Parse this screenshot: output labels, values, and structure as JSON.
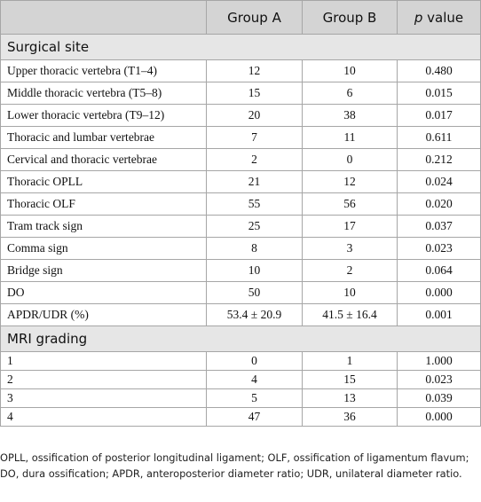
{
  "table": {
    "columns": [
      "Group A",
      "Group B",
      "p value"
    ],
    "sections": [
      {
        "title": "Surgical site",
        "rows": [
          [
            "Upper thoracic vertebra (T1–4)",
            "12",
            "10",
            "0.480"
          ],
          [
            "Middle thoracic vertebra (T5–8)",
            "15",
            "6",
            "0.015"
          ],
          [
            "Lower thoracic vertebra (T9–12)",
            "20",
            "38",
            "0.017"
          ],
          [
            "Thoracic and lumbar vertebrae",
            "7",
            "11",
            "0.611"
          ],
          [
            "Cervical and thoracic vertebrae",
            "2",
            "0",
            "0.212"
          ],
          [
            "Thoracic OPLL",
            "21",
            "12",
            "0.024"
          ],
          [
            "Thoracic OLF",
            "55",
            "56",
            "0.020"
          ],
          [
            "Tram track sign",
            "25",
            "17",
            "0.037"
          ],
          [
            "Comma sign",
            "8",
            "3",
            "0.023"
          ],
          [
            "Bridge sign",
            "10",
            "2",
            "0.064"
          ],
          [
            "DO",
            "50",
            "10",
            "0.000"
          ],
          [
            "APDR/UDR (%)",
            "53.4 ± 20.9",
            "41.5 ± 16.4",
            "0.001"
          ]
        ]
      },
      {
        "title": "MRI grading",
        "rows": [
          [
            "1",
            "0",
            "1",
            "1.000"
          ],
          [
            "2",
            "4",
            "15",
            "0.023"
          ],
          [
            "3",
            "5",
            "13",
            "0.039"
          ],
          [
            "4",
            "47",
            "36",
            "0.000"
          ]
        ]
      }
    ]
  },
  "footnote": "OPLL, ossification of posterior longitudinal ligament; OLF, ossification of ligamentum flavum; DO, dura ossification; APDR, anteroposterior diameter ratio; UDR, unilateral diameter ratio."
}
